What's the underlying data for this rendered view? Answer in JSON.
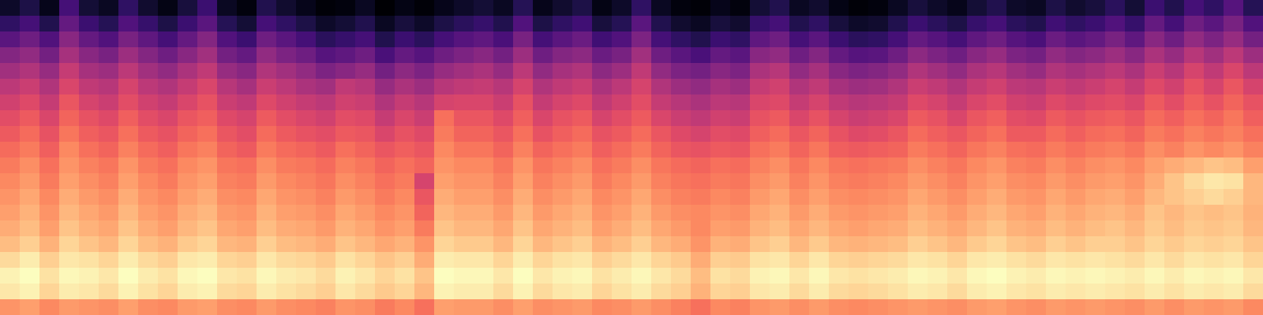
{
  "chart_data": {
    "type": "heatmap",
    "color": "magma",
    "tick_labels": false,
    "cells": [
      [
        10,
        14,
        8,
        22,
        12,
        9,
        18,
        11,
        7,
        13,
        20,
        9,
        6,
        15,
        11,
        8,
        5,
        6,
        9,
        4,
        7,
        5,
        8,
        10,
        12,
        9,
        16,
        8,
        11,
        14,
        7,
        10,
        18,
        9,
        6,
        5,
        8,
        6,
        12,
        15,
        9,
        11,
        7,
        5,
        6,
        9,
        13,
        10,
        8,
        12,
        15,
        10,
        9,
        14,
        11,
        13,
        17,
        12,
        20,
        15,
        22,
        18,
        25,
        16
      ],
      [
        18,
        22,
        15,
        28,
        20,
        16,
        24,
        19,
        14,
        20,
        26,
        16,
        12,
        22,
        18,
        14,
        10,
        12,
        15,
        9,
        13,
        10,
        14,
        17,
        19,
        15,
        24,
        14,
        18,
        21,
        13,
        16,
        26,
        15,
        11,
        9,
        13,
        11,
        19,
        22,
        15,
        18,
        13,
        10,
        11,
        15,
        20,
        17,
        14,
        19,
        22,
        17,
        15,
        21,
        18,
        20,
        24,
        19,
        28,
        22,
        30,
        26,
        32,
        24
      ],
      [
        26,
        30,
        24,
        35,
        28,
        24,
        32,
        27,
        22,
        28,
        34,
        24,
        20,
        30,
        26,
        22,
        17,
        19,
        22,
        15,
        20,
        17,
        22,
        25,
        27,
        23,
        32,
        22,
        26,
        29,
        21,
        24,
        33,
        22,
        18,
        15,
        20,
        18,
        27,
        30,
        22,
        26,
        20,
        17,
        18,
        22,
        28,
        25,
        22,
        27,
        30,
        25,
        23,
        29,
        26,
        28,
        32,
        27,
        35,
        30,
        37,
        33,
        38,
        31
      ],
      [
        34,
        37,
        31,
        41,
        35,
        32,
        39,
        34,
        30,
        35,
        40,
        31,
        28,
        37,
        33,
        30,
        25,
        27,
        30,
        23,
        28,
        25,
        30,
        33,
        35,
        31,
        39,
        30,
        34,
        36,
        29,
        32,
        40,
        30,
        26,
        23,
        28,
        26,
        35,
        37,
        30,
        34,
        28,
        25,
        26,
        30,
        36,
        33,
        30,
        35,
        38,
        33,
        31,
        37,
        34,
        36,
        39,
        35,
        42,
        38,
        44,
        40,
        45,
        39
      ],
      [
        40,
        43,
        38,
        47,
        41,
        39,
        45,
        40,
        37,
        42,
        46,
        38,
        35,
        43,
        40,
        37,
        33,
        35,
        38,
        31,
        36,
        33,
        38,
        40,
        42,
        38,
        45,
        37,
        41,
        43,
        36,
        39,
        46,
        37,
        33,
        31,
        35,
        33,
        42,
        44,
        37,
        41,
        35,
        33,
        34,
        37,
        43,
        40,
        37,
        42,
        44,
        40,
        38,
        43,
        41,
        43,
        45,
        42,
        48,
        44,
        50,
        46,
        51,
        45
      ],
      [
        45,
        48,
        43,
        51,
        46,
        44,
        50,
        45,
        43,
        47,
        51,
        44,
        41,
        48,
        45,
        42,
        40,
        46,
        44,
        38,
        42,
        39,
        44,
        46,
        47,
        44,
        50,
        43,
        46,
        48,
        42,
        45,
        50,
        43,
        39,
        37,
        41,
        39,
        47,
        49,
        43,
        46,
        41,
        39,
        40,
        43,
        48,
        46,
        43,
        47,
        49,
        45,
        44,
        48,
        46,
        48,
        50,
        47,
        52,
        49,
        54,
        50,
        55,
        50
      ],
      [
        49,
        52,
        47,
        55,
        50,
        48,
        53,
        49,
        47,
        51,
        54,
        48,
        46,
        52,
        49,
        47,
        45,
        49,
        48,
        43,
        47,
        44,
        50,
        51,
        51,
        48,
        54,
        47,
        50,
        52,
        46,
        49,
        53,
        47,
        44,
        42,
        45,
        44,
        51,
        52,
        47,
        50,
        46,
        44,
        45,
        47,
        52,
        50,
        47,
        51,
        53,
        49,
        48,
        52,
        50,
        52,
        53,
        51,
        56,
        53,
        57,
        54,
        58,
        54
      ],
      [
        53,
        56,
        51,
        58,
        54,
        52,
        57,
        53,
        51,
        55,
        57,
        52,
        50,
        56,
        53,
        51,
        49,
        53,
        52,
        47,
        51,
        48,
        60,
        55,
        55,
        52,
        57,
        51,
        54,
        56,
        50,
        53,
        56,
        51,
        48,
        46,
        49,
        48,
        54,
        56,
        51,
        54,
        50,
        48,
        49,
        51,
        56,
        54,
        51,
        55,
        57,
        53,
        52,
        56,
        54,
        56,
        57,
        55,
        59,
        57,
        60,
        58,
        61,
        57
      ],
      [
        56,
        59,
        54,
        61,
        57,
        55,
        60,
        56,
        54,
        58,
        60,
        55,
        53,
        59,
        56,
        54,
        53,
        56,
        55,
        51,
        54,
        52,
        62,
        58,
        58,
        55,
        60,
        54,
        57,
        59,
        54,
        56,
        59,
        55,
        52,
        50,
        53,
        52,
        57,
        59,
        55,
        58,
        54,
        52,
        53,
        55,
        59,
        57,
        55,
        58,
        60,
        56,
        56,
        59,
        57,
        59,
        60,
        58,
        62,
        60,
        63,
        61,
        63,
        60
      ],
      [
        59,
        62,
        57,
        64,
        60,
        58,
        63,
        59,
        57,
        61,
        63,
        58,
        56,
        62,
        59,
        58,
        56,
        60,
        58,
        55,
        57,
        55,
        64,
        61,
        61,
        58,
        63,
        58,
        60,
        62,
        57,
        59,
        62,
        58,
        55,
        54,
        56,
        55,
        60,
        62,
        58,
        61,
        57,
        56,
        57,
        58,
        62,
        60,
        58,
        61,
        63,
        60,
        59,
        62,
        60,
        62,
        63,
        61,
        65,
        63,
        66,
        64,
        66,
        63
      ],
      [
        62,
        65,
        60,
        66,
        63,
        61,
        66,
        62,
        60,
        64,
        66,
        61,
        60,
        65,
        62,
        61,
        59,
        63,
        61,
        58,
        60,
        58,
        66,
        64,
        64,
        61,
        66,
        61,
        63,
        65,
        60,
        62,
        65,
        61,
        59,
        58,
        60,
        59,
        63,
        65,
        61,
        64,
        61,
        60,
        61,
        62,
        65,
        63,
        61,
        64,
        66,
        63,
        62,
        65,
        63,
        65,
        66,
        64,
        68,
        70,
        72,
        74,
        73,
        68
      ],
      [
        64,
        67,
        62,
        68,
        65,
        63,
        68,
        64,
        62,
        66,
        68,
        63,
        62,
        67,
        64,
        63,
        61,
        65,
        63,
        60,
        62,
        50,
        68,
        66,
        66,
        63,
        68,
        63,
        65,
        67,
        62,
        64,
        67,
        63,
        61,
        60,
        62,
        61,
        65,
        67,
        63,
        66,
        63,
        62,
        63,
        64,
        67,
        65,
        63,
        66,
        68,
        65,
        64,
        67,
        65,
        67,
        68,
        66,
        70,
        74,
        78,
        80,
        79,
        72
      ],
      [
        66,
        69,
        64,
        70,
        67,
        65,
        70,
        66,
        64,
        68,
        70,
        65,
        64,
        69,
        66,
        65,
        63,
        67,
        65,
        62,
        64,
        55,
        70,
        68,
        68,
        65,
        70,
        65,
        67,
        69,
        64,
        66,
        69,
        65,
        63,
        62,
        64,
        63,
        67,
        69,
        65,
        68,
        65,
        64,
        65,
        66,
        69,
        67,
        65,
        68,
        70,
        67,
        66,
        69,
        67,
        69,
        70,
        68,
        72,
        74,
        76,
        78,
        76,
        72
      ],
      [
        68,
        71,
        66,
        72,
        69,
        67,
        72,
        68,
        66,
        70,
        72,
        67,
        66,
        71,
        68,
        67,
        65,
        69,
        67,
        64,
        66,
        58,
        72,
        70,
        70,
        67,
        72,
        67,
        69,
        71,
        66,
        68,
        71,
        67,
        65,
        64,
        66,
        65,
        69,
        71,
        67,
        70,
        67,
        66,
        67,
        68,
        71,
        69,
        67,
        70,
        72,
        69,
        68,
        71,
        69,
        71,
        72,
        70,
        74,
        72,
        74,
        73,
        74,
        71
      ],
      [
        70,
        73,
        68,
        74,
        71,
        69,
        74,
        70,
        68,
        72,
        74,
        69,
        68,
        73,
        70,
        69,
        67,
        71,
        69,
        66,
        68,
        62,
        74,
        72,
        72,
        69,
        74,
        69,
        71,
        73,
        68,
        70,
        73,
        69,
        67,
        64,
        68,
        67,
        71,
        73,
        69,
        72,
        69,
        68,
        69,
        70,
        73,
        71,
        69,
        72,
        74,
        71,
        70,
        73,
        71,
        73,
        74,
        72,
        75,
        73,
        75,
        74,
        75,
        72
      ],
      [
        73,
        76,
        71,
        77,
        74,
        72,
        77,
        73,
        71,
        75,
        77,
        72,
        71,
        76,
        73,
        72,
        70,
        74,
        72,
        69,
        71,
        66,
        77,
        75,
        75,
        72,
        77,
        72,
        74,
        76,
        71,
        73,
        76,
        72,
        70,
        66,
        71,
        70,
        74,
        76,
        72,
        75,
        72,
        71,
        72,
        73,
        76,
        74,
        72,
        75,
        77,
        74,
        73,
        76,
        74,
        76,
        76,
        74,
        77,
        75,
        77,
        76,
        77,
        74
      ],
      [
        78,
        81,
        76,
        80,
        79,
        77,
        81,
        78,
        76,
        80,
        81,
        77,
        76,
        80,
        78,
        77,
        75,
        79,
        77,
        74,
        76,
        70,
        81,
        80,
        80,
        77,
        81,
        77,
        79,
        80,
        76,
        78,
        80,
        77,
        75,
        70,
        76,
        75,
        79,
        80,
        77,
        80,
        77,
        76,
        77,
        78,
        80,
        79,
        77,
        80,
        81,
        79,
        78,
        80,
        79,
        80,
        79,
        78,
        80,
        78,
        80,
        79,
        80,
        77
      ],
      [
        82,
        84,
        79,
        83,
        82,
        80,
        84,
        81,
        79,
        83,
        84,
        80,
        79,
        83,
        81,
        80,
        78,
        82,
        80,
        77,
        79,
        74,
        84,
        83,
        83,
        80,
        84,
        80,
        82,
        83,
        79,
        81,
        83,
        80,
        78,
        73,
        79,
        78,
        82,
        83,
        80,
        83,
        80,
        79,
        80,
        81,
        83,
        82,
        80,
        83,
        84,
        82,
        81,
        83,
        82,
        83,
        82,
        81,
        83,
        81,
        83,
        82,
        83,
        80
      ],
      [
        80,
        82,
        77,
        81,
        80,
        78,
        82,
        79,
        77,
        81,
        82,
        78,
        77,
        81,
        79,
        78,
        76,
        80,
        78,
        75,
        77,
        72,
        82,
        81,
        81,
        78,
        82,
        78,
        80,
        81,
        77,
        79,
        81,
        78,
        76,
        71,
        77,
        76,
        80,
        81,
        78,
        81,
        78,
        77,
        78,
        79,
        81,
        80,
        78,
        81,
        82,
        80,
        79,
        81,
        80,
        81,
        80,
        79,
        81,
        79,
        81,
        80,
        81,
        78
      ],
      [
        66,
        68,
        64,
        67,
        66,
        65,
        68,
        65,
        64,
        67,
        68,
        65,
        64,
        67,
        65,
        64,
        63,
        66,
        65,
        62,
        64,
        60,
        68,
        67,
        67,
        65,
        68,
        65,
        66,
        67,
        64,
        65,
        67,
        65,
        63,
        60,
        64,
        63,
        66,
        67,
        65,
        67,
        65,
        64,
        65,
        66,
        67,
        66,
        65,
        67,
        68,
        66,
        65,
        67,
        66,
        67,
        66,
        65,
        67,
        65,
        67,
        66,
        67,
        64
      ]
    ]
  }
}
